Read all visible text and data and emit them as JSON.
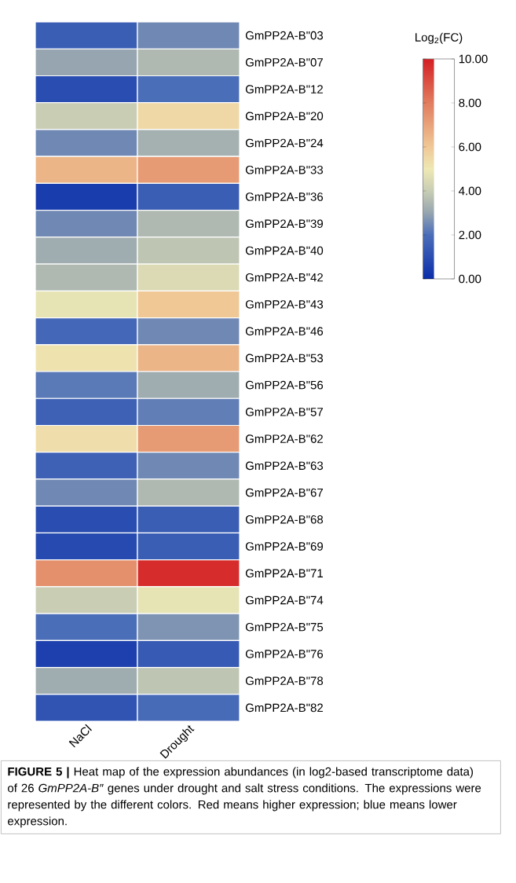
{
  "chart_data": {
    "type": "heatmap",
    "categories": [
      "NaCl",
      "Drought"
    ],
    "y_categories": [
      "GmPP2A-B\"03",
      "GmPP2A-B\"07",
      "GmPP2A-B\"12",
      "GmPP2A-B\"20",
      "GmPP2A-B\"24",
      "GmPP2A-B\"33",
      "GmPP2A-B\"36",
      "GmPP2A-B\"39",
      "GmPP2A-B\"40",
      "GmPP2A-B\"42",
      "GmPP2A-B\"43",
      "GmPP2A-B\"46",
      "GmPP2A-B\"53",
      "GmPP2A-B\"56",
      "GmPP2A-B\"57",
      "GmPP2A-B\"62",
      "GmPP2A-B\"63",
      "GmPP2A-B\"67",
      "GmPP2A-B\"68",
      "GmPP2A-B\"69",
      "GmPP2A-B\"71",
      "GmPP2A-B\"74",
      "GmPP2A-B\"75",
      "GmPP2A-B\"76",
      "GmPP2A-B\"78",
      "GmPP2A-B\"82"
    ],
    "cells": [
      [
        1.5,
        2.5
      ],
      [
        3.0,
        3.5
      ],
      [
        1.0,
        2.0
      ],
      [
        4.0,
        5.5
      ],
      [
        2.5,
        3.3
      ],
      [
        6.5,
        7.2
      ],
      [
        0.5,
        1.5
      ],
      [
        2.5,
        3.5
      ],
      [
        3.2,
        3.8
      ],
      [
        3.5,
        4.5
      ],
      [
        4.8,
        6.0
      ],
      [
        1.8,
        2.5
      ],
      [
        5.2,
        6.5
      ],
      [
        2.2,
        3.2
      ],
      [
        1.6,
        2.3
      ],
      [
        5.3,
        7.2
      ],
      [
        1.6,
        2.5
      ],
      [
        2.5,
        3.5
      ],
      [
        1.0,
        1.5
      ],
      [
        0.9,
        1.5
      ],
      [
        7.5,
        9.7
      ],
      [
        4.0,
        4.8
      ],
      [
        2.0,
        2.7
      ],
      [
        0.6,
        1.4
      ],
      [
        3.2,
        3.8
      ],
      [
        1.2,
        1.9
      ]
    ],
    "clabel": "Log$_{2}$(FC)",
    "clim": [
      0,
      10
    ],
    "cticks": [
      {
        "value": 0,
        "label": "0.00"
      },
      {
        "value": 2,
        "label": "2.00"
      },
      {
        "value": 4,
        "label": "4.00"
      },
      {
        "value": 6,
        "label": "6.00"
      },
      {
        "value": 8,
        "label": "8.00"
      },
      {
        "value": 10,
        "label": "10.00"
      }
    ],
    "annotations": [
      "**FIGURE 5 |** Heat map of the expression abundances (in log2-based transcriptome data) of 26 *GmPP2A-B″* genes under drought and salt stress conditions. The expressions were represented by the different colors. Red means higher expression; blue means lower expression."
    ]
  }
}
